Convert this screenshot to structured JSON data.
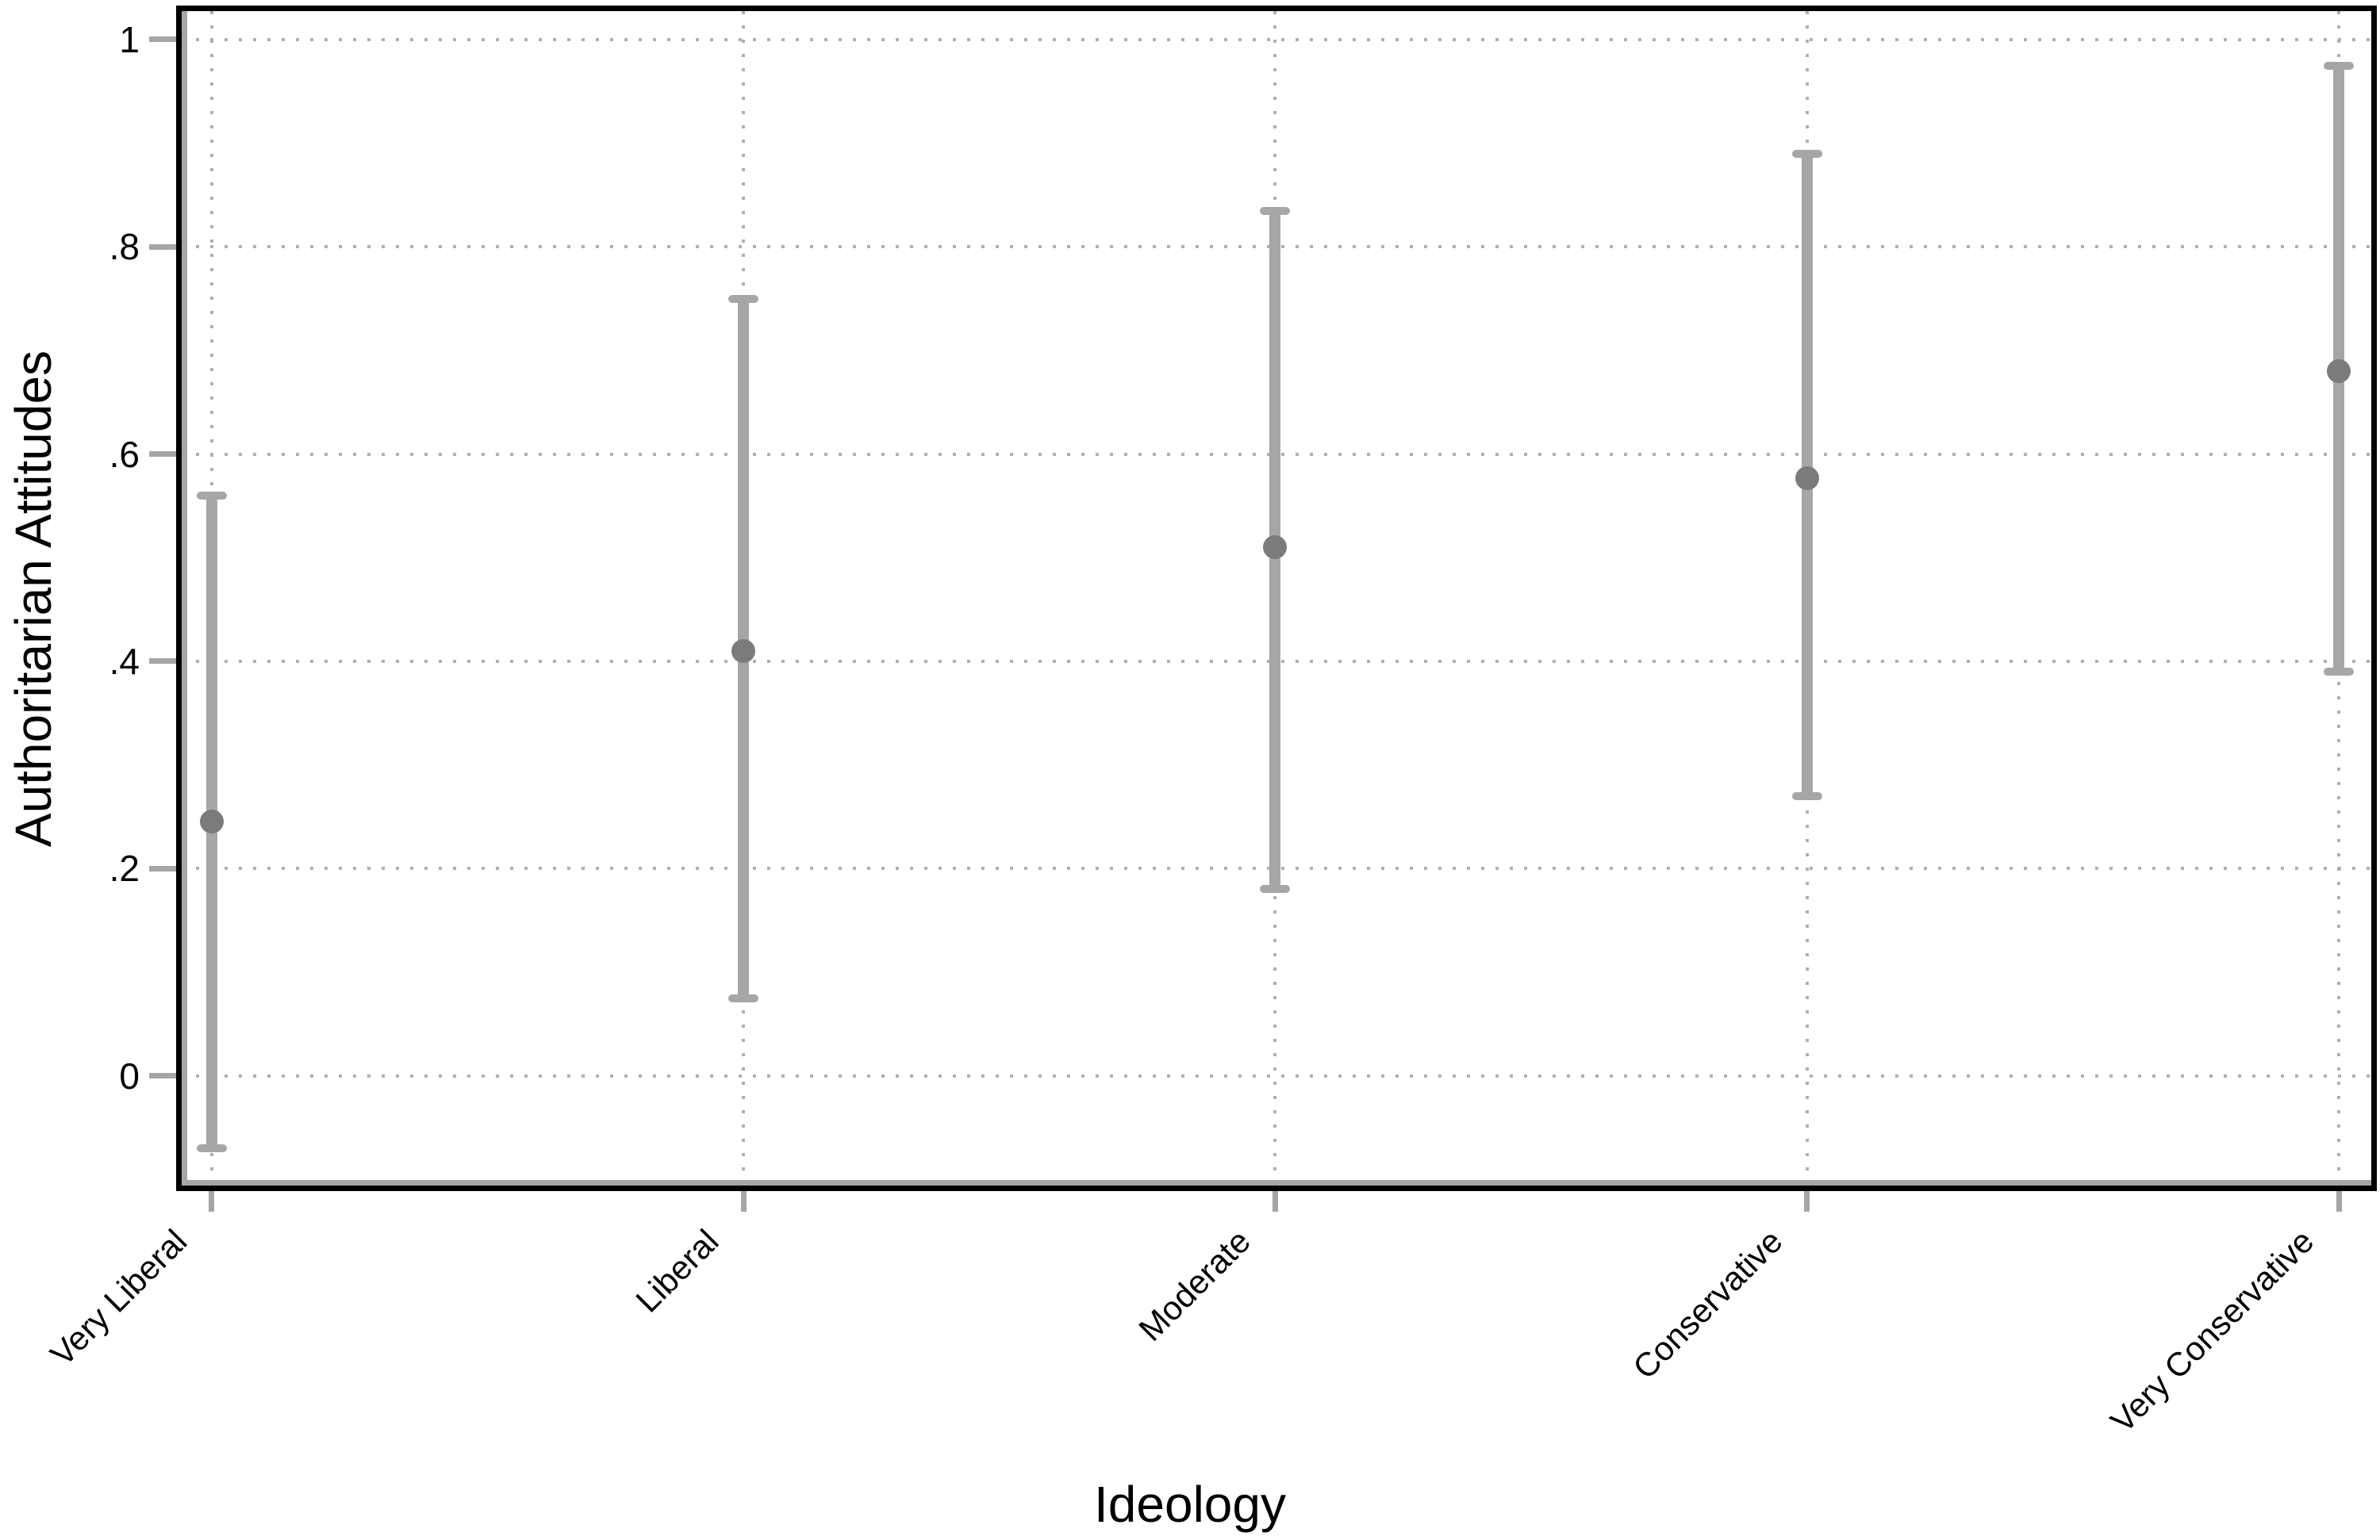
{
  "chart_data": {
    "type": "scatter",
    "subtype": "point-estimate-with-confidence-intervals",
    "title": "",
    "xlabel": "Ideology",
    "ylabel": "Authoritarian Attitudes",
    "categories": [
      "Very Liberal",
      "Liberal",
      "Moderate",
      "Conservative",
      "Very Conservative"
    ],
    "points": [
      {
        "category": "Very Liberal",
        "estimate": 0.245,
        "ci_low": -0.07,
        "ci_high": 0.56
      },
      {
        "category": "Liberal",
        "estimate": 0.41,
        "ci_low": 0.075,
        "ci_high": 0.75
      },
      {
        "category": "Moderate",
        "estimate": 0.51,
        "ci_low": 0.18,
        "ci_high": 0.835
      },
      {
        "category": "Conservative",
        "estimate": 0.577,
        "ci_low": 0.27,
        "ci_high": 0.89
      },
      {
        "category": "Very Conservative",
        "estimate": 0.68,
        "ci_low": 0.39,
        "ci_high": 0.975
      }
    ],
    "y_ticks": [
      0,
      0.2,
      0.4,
      0.6,
      0.8,
      1
    ],
    "y_tick_labels": [
      "0",
      ".2",
      ".4",
      ".6",
      ".8",
      "1"
    ],
    "ylim": [
      -0.106,
      1.0275
    ],
    "grid": true,
    "legend": false,
    "colors": {
      "marker": "#7b7b7b",
      "ci_bar": "#a6a6a6",
      "gridline": "#b0b0b0",
      "axis": "#a6a6a6",
      "frame": "#000000",
      "text": "#000000",
      "background": "#ffffff"
    }
  }
}
